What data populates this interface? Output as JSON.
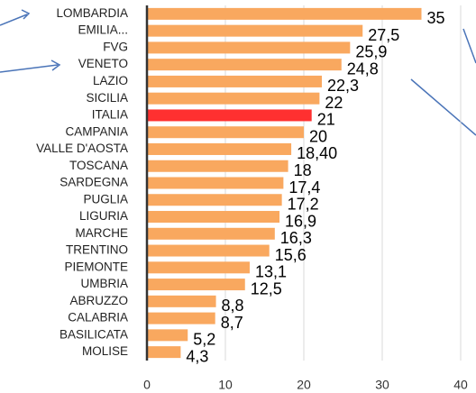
{
  "chart_data": {
    "type": "hbar",
    "categories": [
      "LOMBARDIA",
      "EMILIA...",
      "FVG",
      "VENETO",
      "LAZIO",
      "SICILIA",
      "ITALIA",
      "CAMPANIA",
      "VALLE D'AOSTA",
      "TOSCANA",
      "SARDEGNA",
      "PUGLIA",
      "LIGURIA",
      "MARCHE",
      "TRENTINO",
      "PIEMONTE",
      "UMBRIA",
      "ABRUZZO",
      "CALABRIA",
      "BASILICATA",
      "MOLISE"
    ],
    "values": [
      35,
      27.5,
      25.9,
      24.8,
      22.3,
      22,
      21,
      20,
      18.4,
      18,
      17.4,
      17.2,
      16.9,
      16.3,
      15.6,
      13.1,
      12.5,
      8.8,
      8.7,
      5.2,
      4.3
    ],
    "value_labels": [
      "35",
      "27,5",
      "25,9",
      "24,8",
      "22,3",
      "22",
      "21",
      "20",
      "18,40",
      "18",
      "17,4",
      "17,2",
      "16,9",
      "16,3",
      "15,6",
      "13,1",
      "12,5",
      "8,8",
      "8,7",
      "5,2",
      "4,3"
    ],
    "colors": [
      "#f9a85f",
      "#f9a85f",
      "#f9a85f",
      "#f9a85f",
      "#f9a85f",
      "#f9a85f",
      "#ff3030",
      "#f9a85f",
      "#f9a85f",
      "#f9a85f",
      "#f9a85f",
      "#f9a85f",
      "#f9a85f",
      "#f9a85f",
      "#f9a85f",
      "#f9a85f",
      "#f9a85f",
      "#f9a85f",
      "#f9a85f",
      "#f9a85f",
      "#f9a85f"
    ],
    "xlim": [
      0,
      40
    ],
    "xticks": [
      0,
      10,
      20,
      30,
      40
    ],
    "grid": true
  }
}
